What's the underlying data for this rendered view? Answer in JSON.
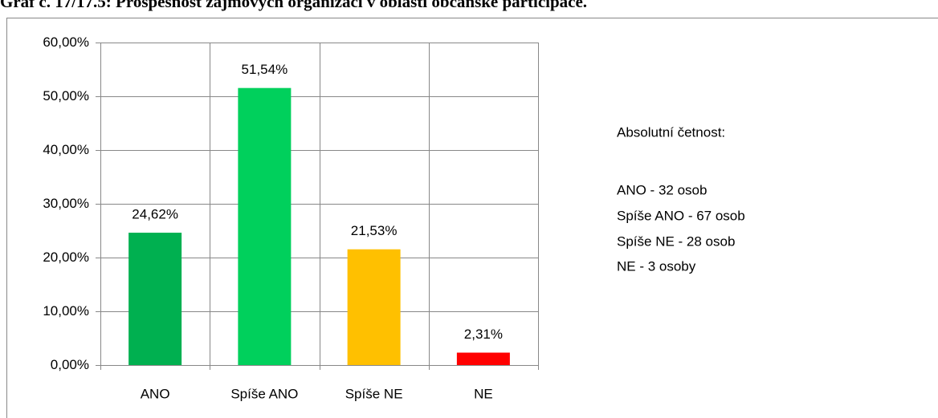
{
  "chart_data": {
    "type": "bar",
    "title": "Graf č. 17/17.5: Prospěšnost zájmových organizací v oblasti občanské participace.",
    "categories": [
      "ANO",
      "Spíše ANO",
      "Spíše NE",
      "NE"
    ],
    "values": [
      24.62,
      51.54,
      21.53,
      2.31
    ],
    "value_labels": [
      "24,62%",
      "51,54%",
      "21,53%",
      "2,31%"
    ],
    "colors": [
      "#00b050",
      "#00d05c",
      "#ffc000",
      "#ff0000"
    ],
    "ylim": [
      0,
      60
    ],
    "yticks": [
      {
        "value": 0,
        "label": "0,00%"
      },
      {
        "value": 10,
        "label": "10,00%"
      },
      {
        "value": 20,
        "label": "20,00%"
      },
      {
        "value": 30,
        "label": "30,00%"
      },
      {
        "value": 40,
        "label": "40,00%"
      },
      {
        "value": 50,
        "label": "50,00%"
      },
      {
        "value": 60,
        "label": "60,00%"
      }
    ],
    "grid": true,
    "annotations": [
      "Absolutní četnost:",
      "ANO - 32 osob",
      "Spíše ANO - 67 osob",
      "Spíše NE - 28 osob",
      "NE - 3 osoby"
    ]
  }
}
